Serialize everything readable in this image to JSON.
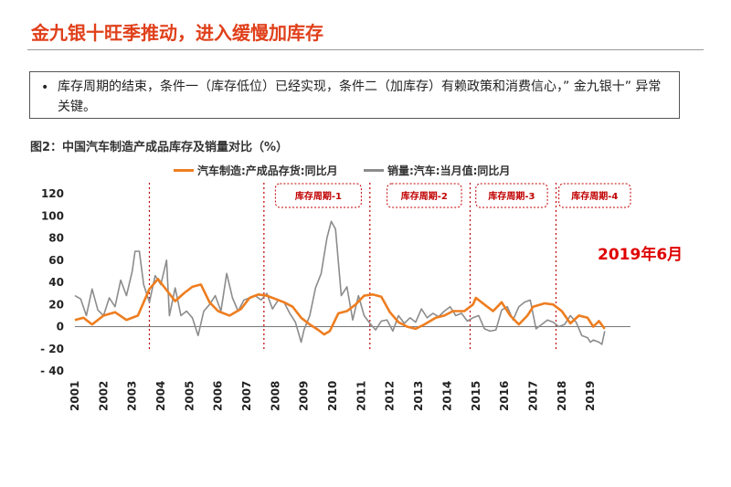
{
  "header": {
    "title": "金九银十旺季推动，进入缓慢加库存"
  },
  "bullet": {
    "text": "库存周期的结束，条件一（库存低位）已经实现，条件二（加库存）有赖政策和消费信心，” 金九银十” 异常关键。"
  },
  "figure": {
    "title": "图2：中国汽车制造产成品库存及销量对比（%）",
    "stamp": "2019年6月"
  },
  "chart_data": {
    "type": "line",
    "ylim": [
      -40,
      120
    ],
    "y_ticks": [
      "120",
      "100",
      "80",
      "60",
      "40",
      "20",
      "0",
      "- 20",
      "- 40"
    ],
    "x_ticks": [
      "2001",
      "2002",
      "2003",
      "2004",
      "2005",
      "2006",
      "2007",
      "2008",
      "2009",
      "2010",
      "2011",
      "2012",
      "2013",
      "2014",
      "2015",
      "2016",
      "2017",
      "2018",
      "2019"
    ],
    "series": [
      {
        "name": "汽车制造:产成品存货:同比月",
        "color": "#ee7d1f",
        "points": [
          [
            2001.0,
            6
          ],
          [
            2001.3,
            8
          ],
          [
            2001.6,
            2
          ],
          [
            2002.0,
            10
          ],
          [
            2002.4,
            13
          ],
          [
            2002.8,
            6
          ],
          [
            2003.2,
            10
          ],
          [
            2003.6,
            34
          ],
          [
            2003.9,
            43
          ],
          [
            2004.2,
            33
          ],
          [
            2004.5,
            23
          ],
          [
            2004.8,
            30
          ],
          [
            2005.1,
            36
          ],
          [
            2005.4,
            38
          ],
          [
            2005.7,
            22
          ],
          [
            2006.0,
            14
          ],
          [
            2006.4,
            10
          ],
          [
            2006.8,
            16
          ],
          [
            2007.1,
            26
          ],
          [
            2007.4,
            29
          ],
          [
            2007.7,
            28
          ],
          [
            2008.0,
            25
          ],
          [
            2008.3,
            22
          ],
          [
            2008.6,
            18
          ],
          [
            2008.9,
            8
          ],
          [
            2009.2,
            2
          ],
          [
            2009.5,
            -3
          ],
          [
            2009.7,
            -7
          ],
          [
            2009.9,
            -4
          ],
          [
            2010.2,
            12
          ],
          [
            2010.5,
            14
          ],
          [
            2010.8,
            20
          ],
          [
            2011.1,
            28
          ],
          [
            2011.4,
            29
          ],
          [
            2011.7,
            27
          ],
          [
            2012.0,
            13
          ],
          [
            2012.3,
            4
          ],
          [
            2012.6,
            0
          ],
          [
            2012.9,
            -2
          ],
          [
            2013.2,
            2
          ],
          [
            2013.6,
            8
          ],
          [
            2013.9,
            10
          ],
          [
            2014.2,
            14
          ],
          [
            2014.6,
            14
          ],
          [
            2014.9,
            20
          ],
          [
            2015.0,
            26
          ],
          [
            2015.3,
            20
          ],
          [
            2015.6,
            14
          ],
          [
            2015.9,
            22
          ],
          [
            2016.2,
            10
          ],
          [
            2016.5,
            2
          ],
          [
            2016.8,
            10
          ],
          [
            2017.0,
            18
          ],
          [
            2017.4,
            21
          ],
          [
            2017.7,
            20
          ],
          [
            2018.0,
            14
          ],
          [
            2018.3,
            3
          ],
          [
            2018.6,
            10
          ],
          [
            2018.9,
            8
          ],
          [
            2019.1,
            0
          ],
          [
            2019.3,
            5
          ],
          [
            2019.5,
            -2
          ]
        ]
      },
      {
        "name": "销量:汽车:当月值:同比月",
        "color": "#8c8c8c",
        "points": [
          [
            2001.0,
            28
          ],
          [
            2001.2,
            25
          ],
          [
            2001.4,
            10
          ],
          [
            2001.6,
            34
          ],
          [
            2001.8,
            15
          ],
          [
            2002.0,
            10
          ],
          [
            2002.2,
            26
          ],
          [
            2002.4,
            18
          ],
          [
            2002.6,
            42
          ],
          [
            2002.8,
            28
          ],
          [
            2003.0,
            50
          ],
          [
            2003.1,
            68
          ],
          [
            2003.25,
            68
          ],
          [
            2003.4,
            38
          ],
          [
            2003.6,
            22
          ],
          [
            2003.8,
            46
          ],
          [
            2004.0,
            38
          ],
          [
            2004.2,
            60
          ],
          [
            2004.3,
            10
          ],
          [
            2004.5,
            35
          ],
          [
            2004.7,
            10
          ],
          [
            2004.9,
            14
          ],
          [
            2005.1,
            8
          ],
          [
            2005.3,
            -8
          ],
          [
            2005.5,
            14
          ],
          [
            2005.7,
            20
          ],
          [
            2005.9,
            28
          ],
          [
            2006.1,
            14
          ],
          [
            2006.3,
            48
          ],
          [
            2006.5,
            26
          ],
          [
            2006.7,
            14
          ],
          [
            2006.9,
            24
          ],
          [
            2007.1,
            26
          ],
          [
            2007.3,
            28
          ],
          [
            2007.5,
            24
          ],
          [
            2007.7,
            30
          ],
          [
            2007.9,
            16
          ],
          [
            2008.1,
            24
          ],
          [
            2008.3,
            22
          ],
          [
            2008.5,
            12
          ],
          [
            2008.7,
            4
          ],
          [
            2008.9,
            -14
          ],
          [
            2009.0,
            -3
          ],
          [
            2009.2,
            10
          ],
          [
            2009.4,
            35
          ],
          [
            2009.6,
            48
          ],
          [
            2009.8,
            80
          ],
          [
            2009.95,
            95
          ],
          [
            2010.1,
            88
          ],
          [
            2010.3,
            28
          ],
          [
            2010.5,
            36
          ],
          [
            2010.7,
            6
          ],
          [
            2010.9,
            28
          ],
          [
            2011.1,
            10
          ],
          [
            2011.3,
            3
          ],
          [
            2011.5,
            -3
          ],
          [
            2011.7,
            5
          ],
          [
            2011.9,
            6
          ],
          [
            2012.1,
            -4
          ],
          [
            2012.3,
            10
          ],
          [
            2012.5,
            3
          ],
          [
            2012.7,
            8
          ],
          [
            2012.9,
            4
          ],
          [
            2013.1,
            16
          ],
          [
            2013.3,
            8
          ],
          [
            2013.5,
            12
          ],
          [
            2013.7,
            9
          ],
          [
            2013.9,
            14
          ],
          [
            2014.1,
            18
          ],
          [
            2014.3,
            10
          ],
          [
            2014.5,
            12
          ],
          [
            2014.7,
            5
          ],
          [
            2014.9,
            8
          ],
          [
            2015.1,
            10
          ],
          [
            2015.3,
            -2
          ],
          [
            2015.5,
            -4
          ],
          [
            2015.7,
            -3
          ],
          [
            2015.9,
            15
          ],
          [
            2016.1,
            18
          ],
          [
            2016.3,
            6
          ],
          [
            2016.5,
            18
          ],
          [
            2016.7,
            22
          ],
          [
            2016.9,
            24
          ],
          [
            2017.1,
            -2
          ],
          [
            2017.3,
            2
          ],
          [
            2017.5,
            6
          ],
          [
            2017.7,
            4
          ],
          [
            2017.9,
            0
          ],
          [
            2018.1,
            2
          ],
          [
            2018.3,
            10
          ],
          [
            2018.5,
            4
          ],
          [
            2018.7,
            -8
          ],
          [
            2018.9,
            -10
          ],
          [
            2019.0,
            -14
          ],
          [
            2019.1,
            -12
          ],
          [
            2019.3,
            -14
          ],
          [
            2019.4,
            -16
          ],
          [
            2019.5,
            -4
          ]
        ]
      }
    ],
    "cycle_boxes": [
      {
        "label": "库存周期-1",
        "start": 2008.0,
        "end": 2011.0
      },
      {
        "label": "库存周期-2",
        "start": 2011.9,
        "end": 2014.5
      },
      {
        "label": "库存周期-3",
        "start": 2015.0,
        "end": 2017.5
      },
      {
        "label": "库存周期-4",
        "start": 2017.9,
        "end": 2020.4
      }
    ],
    "cycle_boundaries": [
      2003.6,
      2007.6,
      2011.3,
      2014.8,
      2017.8
    ]
  }
}
